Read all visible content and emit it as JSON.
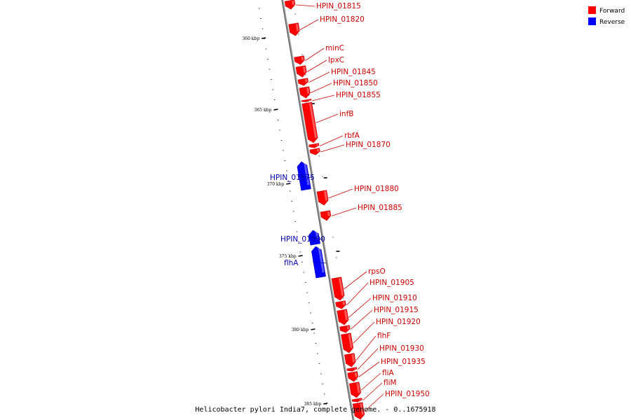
{
  "caption": "Helicobacter pylori India7, complete genome. - 0..1675918",
  "legend": [
    {
      "label": "Forward",
      "color": "#ff0000"
    },
    {
      "label": "Reverse",
      "color": "#0000ff"
    }
  ],
  "colors": {
    "forward": "#ff0000",
    "reverse": "#0000ff",
    "forward_label": "#cc0000",
    "reverse_label": "#0000aa",
    "axis": "#808080"
  },
  "ticks": [
    "360 kbp",
    "365 kbp",
    "370 kbp",
    "375 kbp",
    "380 kbp",
    "385 kbp"
  ],
  "genes": [
    {
      "label": "HPIN_01815",
      "strand": "forward"
    },
    {
      "label": "HPIN_01820",
      "strand": "forward"
    },
    {
      "label": "minC",
      "strand": "forward"
    },
    {
      "label": "lpxC",
      "strand": "forward"
    },
    {
      "label": "HPIN_01845",
      "strand": "forward"
    },
    {
      "label": "HPIN_01850",
      "strand": "forward"
    },
    {
      "label": "HPIN_01855",
      "strand": "forward"
    },
    {
      "label": "infB",
      "strand": "forward"
    },
    {
      "label": "rbfA",
      "strand": "forward"
    },
    {
      "label": "HPIN_01870",
      "strand": "forward"
    },
    {
      "label": "HPIN_01875",
      "strand": "reverse"
    },
    {
      "label": "HPIN_01880",
      "strand": "forward"
    },
    {
      "label": "HPIN_01885",
      "strand": "forward"
    },
    {
      "label": "HPIN_01890",
      "strand": "reverse"
    },
    {
      "label": "flhA",
      "strand": "reverse"
    },
    {
      "label": "rpsO",
      "strand": "forward"
    },
    {
      "label": "HPIN_01905",
      "strand": "forward"
    },
    {
      "label": "HPIN_01910",
      "strand": "forward"
    },
    {
      "label": "HPIN_01915",
      "strand": "forward"
    },
    {
      "label": "HPIN_01920",
      "strand": "forward"
    },
    {
      "label": "flhF",
      "strand": "forward"
    },
    {
      "label": "HPIN_01930",
      "strand": "forward"
    },
    {
      "label": "HPIN_01935",
      "strand": "forward"
    },
    {
      "label": "fliA",
      "strand": "forward"
    },
    {
      "label": "fliM",
      "strand": "forward"
    },
    {
      "label": "HPIN_01950",
      "strand": "forward"
    }
  ]
}
